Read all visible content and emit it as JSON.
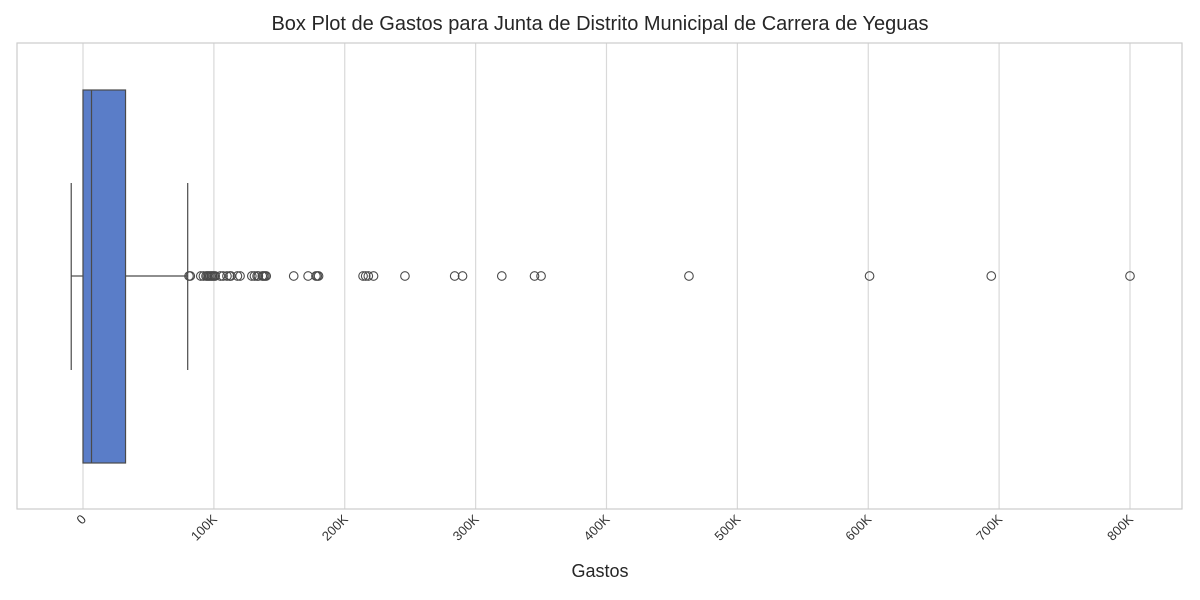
{
  "chart_data": {
    "type": "box",
    "title": "Box Plot de Gastos para Junta de Distrito Municipal de Carrera de Yeguas",
    "xlabel": "Gastos",
    "ylabel": "",
    "xlim": [
      -50000,
      830000
    ],
    "x_ticks": [
      {
        "value": 0,
        "label": "0"
      },
      {
        "value": 100000,
        "label": "100K"
      },
      {
        "value": 200000,
        "label": "200K"
      },
      {
        "value": 300000,
        "label": "300K"
      },
      {
        "value": 400000,
        "label": "400K"
      },
      {
        "value": 500000,
        "label": "500K"
      },
      {
        "value": 600000,
        "label": "600K"
      },
      {
        "value": 700000,
        "label": "700K"
      },
      {
        "value": 800000,
        "label": "800K"
      }
    ],
    "box": {
      "whisker_low": -9000,
      "q1": 0,
      "median": 6500,
      "q3": 32500,
      "whisker_high": 80000,
      "color": "#5a7dc8"
    },
    "outliers": [
      81000,
      82000,
      90000,
      92000,
      94000,
      95000,
      96000,
      97000,
      98000,
      99000,
      100000,
      101000,
      105000,
      107000,
      110000,
      112000,
      113000,
      118000,
      120000,
      129000,
      131000,
      133000,
      134000,
      137000,
      138000,
      139000,
      140000,
      161000,
      172000,
      178000,
      179000,
      180000,
      214000,
      216000,
      218000,
      222000,
      246000,
      284000,
      290000,
      320000,
      345000,
      350000,
      463000,
      601000,
      694000,
      800000
    ],
    "grid": true,
    "tick_rotation": 45
  }
}
